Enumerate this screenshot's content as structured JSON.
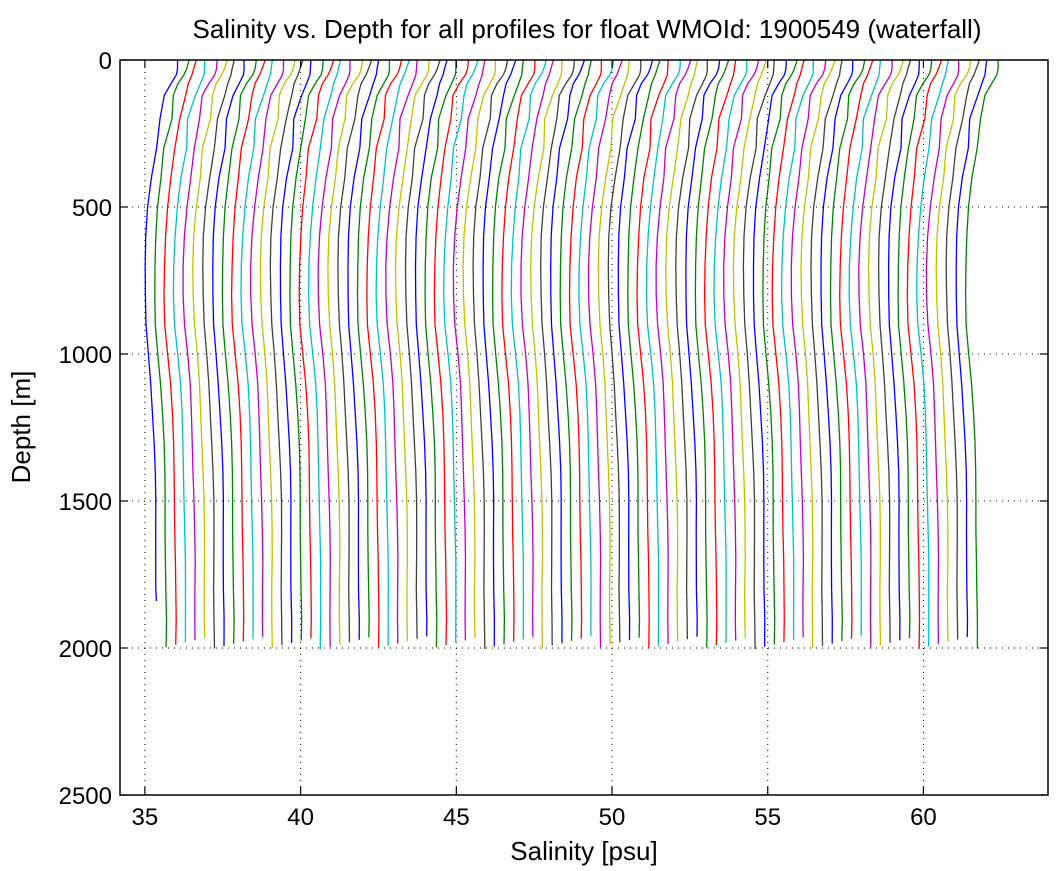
{
  "chart_data": {
    "type": "line",
    "title": "Salinity vs. Depth for all profiles for float WMOId: 1900549 (waterfall)",
    "xlabel": "Salinity [psu]",
    "ylabel": "Depth [m]",
    "xlim": [
      34.2,
      64
    ],
    "ylim": [
      0,
      2500
    ],
    "y_reversed": true,
    "grid": true,
    "grid_style": "dotted",
    "x_ticks": [
      35,
      40,
      45,
      50,
      55,
      60
    ],
    "y_ticks": [
      0,
      500,
      1000,
      1500,
      2000,
      2500
    ],
    "profile_count": 86,
    "profile_offset_psu": 0.31,
    "first_profile_offset_psu": 35.0,
    "colors": [
      "#0000ff",
      "#007f00",
      "#ff0000",
      "#00bfbf",
      "#bf00bf",
      "#bfbf00",
      "#3f3f3f"
    ],
    "base_profile": {
      "depth": [
        0,
        30,
        50,
        80,
        120,
        200,
        300,
        400,
        500,
        600,
        700,
        800,
        900,
        1000,
        1100,
        1200,
        1300,
        1400,
        1500,
        1600,
        1700,
        1800,
        1900,
        2000
      ],
      "salinity_anomaly": [
        1.05,
        1.0,
        0.95,
        0.8,
        0.65,
        0.5,
        0.35,
        0.22,
        0.1,
        0.03,
        0.0,
        0.0,
        0.03,
        0.12,
        0.2,
        0.25,
        0.29,
        0.32,
        0.34,
        0.35,
        0.36,
        0.36,
        0.37,
        0.37
      ]
    }
  }
}
